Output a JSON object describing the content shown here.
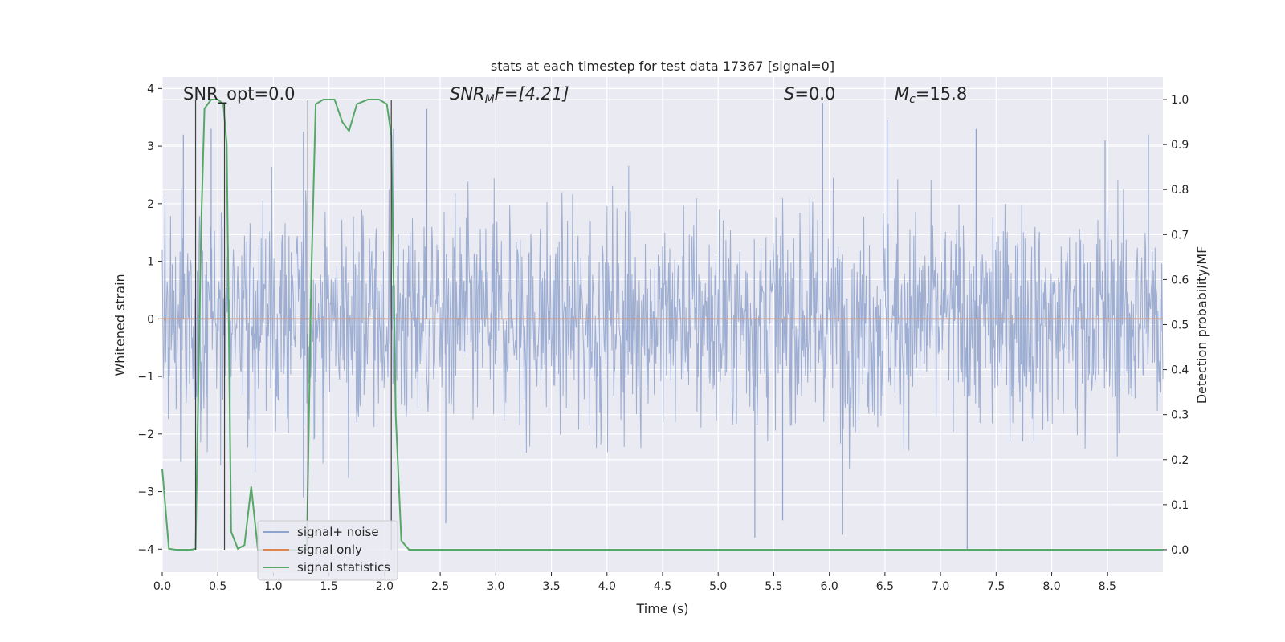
{
  "chart_data": {
    "type": "line",
    "title": "stats at each timestep for test data 17367 [signal=0]",
    "xlabel": "Time (s)",
    "ylabel_left": "Whitened strain",
    "ylabel_right": "Detection probability/MF",
    "xlim": [
      0.0,
      9.0
    ],
    "ylim_left": [
      -4.4,
      4.2
    ],
    "ylim_right": [
      -0.05,
      1.05
    ],
    "x_ticks": [
      "0.0",
      "0.5",
      "1.0",
      "1.5",
      "2.0",
      "2.5",
      "3.0",
      "3.5",
      "4.0",
      "4.5",
      "5.0",
      "5.5",
      "6.0",
      "6.5",
      "7.0",
      "7.5",
      "8.0",
      "8.5"
    ],
    "y_left_ticks": [
      "−4",
      "−3",
      "−2",
      "−1",
      "0",
      "1",
      "2",
      "3",
      "4"
    ],
    "y_right_ticks": [
      "0.0",
      "0.1",
      "0.2",
      "0.3",
      "0.4",
      "0.5",
      "0.6",
      "0.7",
      "0.8",
      "0.9",
      "1.0"
    ],
    "grid": true,
    "legend_position": "lower-left",
    "annotations": {
      "snr_opt": "SNR_opt=0.0",
      "snr_mf_main": "SNR",
      "snr_mf_sub": "M",
      "snr_mf_rest": "F=[4.21]",
      "s_main": "S",
      "s_rest": "=0.0",
      "mc_main": "M",
      "mc_sub": "c",
      "mc_rest": "=15.8"
    },
    "series": [
      {
        "name": "signal+ noise",
        "color": "#8fa3cc",
        "description_values": "whitened noise strain, approx. amplitude range -4.0 to 3.8",
        "time_range": [
          0.0,
          9.0
        ],
        "peak_positive": [
          {
            "x": 0.19,
            "y": 3.2
          },
          {
            "x": 0.44,
            "y": 3.3
          },
          {
            "x": 1.27,
            "y": 3.25
          },
          {
            "x": 2.08,
            "y": 3.3
          },
          {
            "x": 2.38,
            "y": 3.65
          },
          {
            "x": 5.94,
            "y": 3.75
          },
          {
            "x": 6.52,
            "y": 3.45
          },
          {
            "x": 7.32,
            "y": 3.3
          },
          {
            "x": 8.48,
            "y": 3.1
          },
          {
            "x": 8.87,
            "y": 3.2
          }
        ],
        "peak_negative": [
          {
            "x": 1.27,
            "y": -3.1
          },
          {
            "x": 2.55,
            "y": -3.55
          },
          {
            "x": 5.33,
            "y": -3.8
          },
          {
            "x": 5.58,
            "y": -3.5
          },
          {
            "x": 6.12,
            "y": -3.75
          },
          {
            "x": 7.24,
            "y": -4.0
          }
        ]
      },
      {
        "name": "signal only",
        "color": "#dd8452",
        "x": [
          0.0,
          9.0
        ],
        "y": [
          0.0,
          0.0
        ]
      },
      {
        "name": "signal statistics",
        "color": "#55a868",
        "axis": "right",
        "x": [
          0.0,
          0.06,
          0.12,
          0.2,
          0.26,
          0.3,
          0.35,
          0.38,
          0.44,
          0.5,
          0.55,
          0.58,
          0.62,
          0.68,
          0.74,
          0.8,
          0.86,
          0.95,
          1.05,
          1.15,
          1.25,
          1.3,
          1.34,
          1.38,
          1.45,
          1.55,
          1.62,
          1.68,
          1.75,
          1.85,
          1.95,
          2.02,
          2.06,
          2.1,
          2.15,
          2.22,
          2.35,
          9.0
        ],
        "y": [
          0.18,
          0.002,
          0.0,
          0.0,
          0.0,
          0.002,
          0.72,
          0.98,
          1.0,
          1.0,
          0.99,
          0.9,
          0.04,
          0.002,
          0.01,
          0.14,
          0.0,
          0.0,
          0.0,
          0.0,
          0.0,
          0.0,
          0.6,
          0.99,
          1.0,
          1.0,
          0.95,
          0.93,
          0.99,
          1.0,
          1.0,
          0.99,
          0.92,
          0.3,
          0.02,
          0.0,
          0.0,
          0.0
        ]
      }
    ],
    "vertical_markers": [
      {
        "x": 0.3,
        "y_top": 1.0
      },
      {
        "x": 0.56,
        "y_top": 0.99
      },
      {
        "x": 1.31,
        "y_top": 1.0
      },
      {
        "x": 2.06,
        "y_top": 1.0
      }
    ]
  }
}
